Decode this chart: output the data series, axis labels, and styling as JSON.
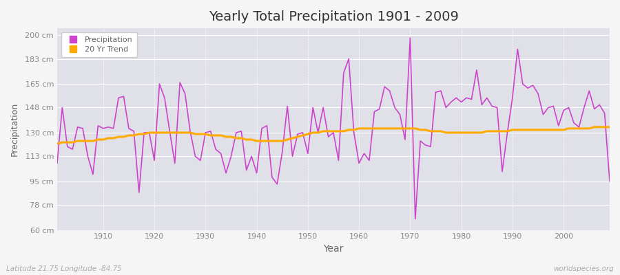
{
  "title": "Yearly Total Precipitation 1901 - 2009",
  "xlabel": "Year",
  "ylabel": "Precipitation",
  "subtitle_left": "Latitude 21.75 Longitude -84.75",
  "subtitle_right": "worldspecies.org",
  "precip_color": "#cc44cc",
  "trend_color": "#ffaa00",
  "fig_bg_color": "#f5f5f5",
  "plot_bg_color": "#e0e0e8",
  "grid_color": "#ffffff",
  "tick_color": "#888888",
  "title_color": "#333333",
  "label_color": "#666666",
  "ylim": [
    60,
    205
  ],
  "yticks": [
    60,
    78,
    95,
    113,
    130,
    148,
    165,
    183,
    200
  ],
  "ytick_labels": [
    "60 cm",
    "78 cm",
    "95 cm",
    "113 cm",
    "130 cm",
    "148 cm",
    "165 cm",
    "183 cm",
    "200 cm"
  ],
  "years": [
    1901,
    1902,
    1903,
    1904,
    1905,
    1906,
    1907,
    1908,
    1909,
    1910,
    1911,
    1912,
    1913,
    1914,
    1915,
    1916,
    1917,
    1918,
    1919,
    1920,
    1921,
    1922,
    1923,
    1924,
    1925,
    1926,
    1927,
    1928,
    1929,
    1930,
    1931,
    1932,
    1933,
    1934,
    1935,
    1936,
    1937,
    1938,
    1939,
    1940,
    1941,
    1942,
    1943,
    1944,
    1945,
    1946,
    1947,
    1948,
    1949,
    1950,
    1951,
    1952,
    1953,
    1954,
    1955,
    1956,
    1957,
    1958,
    1959,
    1960,
    1961,
    1962,
    1963,
    1964,
    1965,
    1966,
    1967,
    1968,
    1969,
    1970,
    1971,
    1972,
    1973,
    1974,
    1975,
    1976,
    1977,
    1978,
    1979,
    1980,
    1981,
    1982,
    1983,
    1984,
    1985,
    1986,
    1987,
    1988,
    1989,
    1990,
    1991,
    1992,
    1993,
    1994,
    1995,
    1996,
    1997,
    1998,
    1999,
    2000,
    2001,
    2002,
    2003,
    2004,
    2005,
    2006,
    2007,
    2008,
    2009
  ],
  "precip": [
    108,
    148,
    120,
    118,
    134,
    133,
    113,
    100,
    135,
    133,
    134,
    133,
    155,
    156,
    133,
    131,
    87,
    130,
    130,
    110,
    165,
    155,
    131,
    108,
    166,
    158,
    131,
    113,
    110,
    130,
    131,
    118,
    115,
    101,
    113,
    130,
    131,
    103,
    113,
    101,
    133,
    135,
    98,
    93,
    116,
    149,
    113,
    129,
    130,
    115,
    148,
    130,
    148,
    127,
    130,
    110,
    173,
    183,
    130,
    108,
    115,
    110,
    145,
    147,
    163,
    160,
    148,
    143,
    125,
    198,
    68,
    124,
    121,
    120,
    159,
    160,
    148,
    152,
    155,
    152,
    155,
    154,
    175,
    150,
    155,
    149,
    148,
    102,
    130,
    155,
    190,
    165,
    162,
    164,
    158,
    143,
    148,
    149,
    135,
    146,
    148,
    137,
    134,
    148,
    160,
    147,
    150,
    144,
    95
  ],
  "trend": [
    122,
    123,
    123,
    123,
    124,
    124,
    124,
    124,
    125,
    125,
    126,
    126,
    127,
    127,
    128,
    128,
    129,
    129,
    130,
    130,
    130,
    130,
    130,
    130,
    130,
    130,
    130,
    129,
    129,
    129,
    128,
    128,
    128,
    127,
    127,
    126,
    126,
    125,
    125,
    124,
    124,
    124,
    124,
    124,
    124,
    125,
    126,
    127,
    128,
    129,
    130,
    130,
    131,
    131,
    131,
    131,
    131,
    132,
    132,
    133,
    133,
    133,
    133,
    133,
    133,
    133,
    133,
    133,
    133,
    133,
    133,
    132,
    132,
    131,
    131,
    131,
    130,
    130,
    130,
    130,
    130,
    130,
    130,
    130,
    131,
    131,
    131,
    131,
    131,
    132,
    132,
    132,
    132,
    132,
    132,
    132,
    132,
    132,
    132,
    132,
    133,
    133,
    133,
    133,
    133,
    134,
    134,
    134,
    134
  ]
}
